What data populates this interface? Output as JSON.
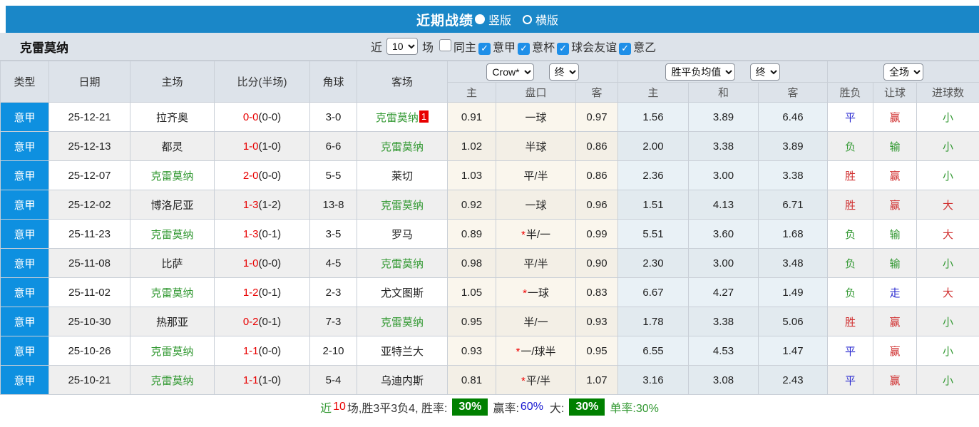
{
  "banner": {
    "title": "近期战绩",
    "radio_vertical": "竖版",
    "radio_horizontal": "横版"
  },
  "filter": {
    "team": "克雷莫纳",
    "near_label": "近",
    "matches_value": "10",
    "matches_label": "场",
    "checkboxes": [
      {
        "label": "同主",
        "checked": false
      },
      {
        "label": "意甲",
        "checked": true
      },
      {
        "label": "意杯",
        "checked": true
      },
      {
        "label": "球会友谊",
        "checked": true
      },
      {
        "label": "意乙",
        "checked": true
      }
    ]
  },
  "colors": {
    "banner_blue": "#1a87c8",
    "league_cell_blue": "#0e90e0",
    "team_green": "#339933",
    "score_red": "#e80000",
    "badge_green": "#008000"
  },
  "table": {
    "headers": {
      "type": "类型",
      "date": "日期",
      "home": "主场",
      "score": "比分(半场)",
      "corner": "角球",
      "away": "客场",
      "odds_home": "主",
      "handicap": "盘口",
      "odds_away": "客",
      "avg_home": "主",
      "avg_draw": "和",
      "avg_away": "客",
      "result": "胜负",
      "let_goal": "让球",
      "goals": "进球数"
    },
    "controls": {
      "company": "Crow*",
      "company_period": "终",
      "avg": "胜平负均值",
      "avg_period": "终",
      "scope": "全场"
    },
    "rows": [
      {
        "league": "意甲",
        "date": "25-12-21",
        "home": {
          "text": "拉齐奥",
          "color": "dark"
        },
        "score": {
          "ft": "0-0",
          "ht": "(0-0)"
        },
        "corner": "3-0",
        "away": {
          "text": "克雷莫纳",
          "color": "green",
          "badge": "1"
        },
        "odds": {
          "home": "0.91",
          "handicap": "一球",
          "starred": false,
          "away": "0.97"
        },
        "avg": {
          "home": "1.56",
          "draw": "3.89",
          "away": "6.46"
        },
        "result": {
          "text": "平",
          "color": "blue"
        },
        "let_goal": {
          "text": "赢",
          "color": "red"
        },
        "goals": {
          "text": "小",
          "color": "green"
        }
      },
      {
        "league": "意甲",
        "date": "25-12-13",
        "home": {
          "text": "都灵",
          "color": "dark"
        },
        "score": {
          "ft": "1-0",
          "ht": "(1-0)"
        },
        "corner": "6-6",
        "away": {
          "text": "克雷莫纳",
          "color": "green"
        },
        "odds": {
          "home": "1.02",
          "handicap": "半球",
          "starred": false,
          "away": "0.86"
        },
        "avg": {
          "home": "2.00",
          "draw": "3.38",
          "away": "3.89"
        },
        "result": {
          "text": "负",
          "color": "green"
        },
        "let_goal": {
          "text": "输",
          "color": "green"
        },
        "goals": {
          "text": "小",
          "color": "green"
        }
      },
      {
        "league": "意甲",
        "date": "25-12-07",
        "home": {
          "text": "克雷莫纳",
          "color": "green"
        },
        "score": {
          "ft": "2-0",
          "ht": "(0-0)"
        },
        "corner": "5-5",
        "away": {
          "text": "莱切",
          "color": "dark"
        },
        "odds": {
          "home": "1.03",
          "handicap": "平/半",
          "starred": false,
          "away": "0.86"
        },
        "avg": {
          "home": "2.36",
          "draw": "3.00",
          "away": "3.38"
        },
        "result": {
          "text": "胜",
          "color": "red"
        },
        "let_goal": {
          "text": "赢",
          "color": "red"
        },
        "goals": {
          "text": "小",
          "color": "green"
        }
      },
      {
        "league": "意甲",
        "date": "25-12-02",
        "home": {
          "text": "博洛尼亚",
          "color": "dark"
        },
        "score": {
          "ft": "1-3",
          "ht": "(1-2)"
        },
        "corner": "13-8",
        "away": {
          "text": "克雷莫纳",
          "color": "green"
        },
        "odds": {
          "home": "0.92",
          "handicap": "一球",
          "starred": false,
          "away": "0.96"
        },
        "avg": {
          "home": "1.51",
          "draw": "4.13",
          "away": "6.71"
        },
        "result": {
          "text": "胜",
          "color": "red"
        },
        "let_goal": {
          "text": "赢",
          "color": "red"
        },
        "goals": {
          "text": "大",
          "color": "red"
        }
      },
      {
        "league": "意甲",
        "date": "25-11-23",
        "home": {
          "text": "克雷莫纳",
          "color": "green"
        },
        "score": {
          "ft": "1-3",
          "ht": "(0-1)"
        },
        "corner": "3-5",
        "away": {
          "text": "罗马",
          "color": "dark"
        },
        "odds": {
          "home": "0.89",
          "handicap": "半/一",
          "starred": true,
          "away": "0.99"
        },
        "avg": {
          "home": "5.51",
          "draw": "3.60",
          "away": "1.68"
        },
        "result": {
          "text": "负",
          "color": "green"
        },
        "let_goal": {
          "text": "输",
          "color": "green"
        },
        "goals": {
          "text": "大",
          "color": "red"
        }
      },
      {
        "league": "意甲",
        "date": "25-11-08",
        "home": {
          "text": "比萨",
          "color": "dark"
        },
        "score": {
          "ft": "1-0",
          "ht": "(0-0)"
        },
        "corner": "4-5",
        "away": {
          "text": "克雷莫纳",
          "color": "green"
        },
        "odds": {
          "home": "0.98",
          "handicap": "平/半",
          "starred": false,
          "away": "0.90"
        },
        "avg": {
          "home": "2.30",
          "draw": "3.00",
          "away": "3.48"
        },
        "result": {
          "text": "负",
          "color": "green"
        },
        "let_goal": {
          "text": "输",
          "color": "green"
        },
        "goals": {
          "text": "小",
          "color": "green"
        }
      },
      {
        "league": "意甲",
        "date": "25-11-02",
        "home": {
          "text": "克雷莫纳",
          "color": "green"
        },
        "score": {
          "ft": "1-2",
          "ht": "(0-1)"
        },
        "corner": "2-3",
        "away": {
          "text": "尤文图斯",
          "color": "dark"
        },
        "odds": {
          "home": "1.05",
          "handicap": "一球",
          "starred": true,
          "away": "0.83"
        },
        "avg": {
          "home": "6.67",
          "draw": "4.27",
          "away": "1.49"
        },
        "result": {
          "text": "负",
          "color": "green"
        },
        "let_goal": {
          "text": "走",
          "color": "blue"
        },
        "goals": {
          "text": "大",
          "color": "red"
        }
      },
      {
        "league": "意甲",
        "date": "25-10-30",
        "home": {
          "text": "热那亚",
          "color": "dark"
        },
        "score": {
          "ft": "0-2",
          "ht": "(0-1)"
        },
        "corner": "7-3",
        "away": {
          "text": "克雷莫纳",
          "color": "green"
        },
        "odds": {
          "home": "0.95",
          "handicap": "半/一",
          "starred": false,
          "away": "0.93"
        },
        "avg": {
          "home": "1.78",
          "draw": "3.38",
          "away": "5.06"
        },
        "result": {
          "text": "胜",
          "color": "red"
        },
        "let_goal": {
          "text": "赢",
          "color": "red"
        },
        "goals": {
          "text": "小",
          "color": "green"
        }
      },
      {
        "league": "意甲",
        "date": "25-10-26",
        "home": {
          "text": "克雷莫纳",
          "color": "green"
        },
        "score": {
          "ft": "1-1",
          "ht": "(0-0)"
        },
        "corner": "2-10",
        "away": {
          "text": "亚特兰大",
          "color": "dark"
        },
        "odds": {
          "home": "0.93",
          "handicap": "一/球半",
          "starred": true,
          "away": "0.95"
        },
        "avg": {
          "home": "6.55",
          "draw": "4.53",
          "away": "1.47"
        },
        "result": {
          "text": "平",
          "color": "blue"
        },
        "let_goal": {
          "text": "赢",
          "color": "red"
        },
        "goals": {
          "text": "小",
          "color": "green"
        }
      },
      {
        "league": "意甲",
        "date": "25-10-21",
        "home": {
          "text": "克雷莫纳",
          "color": "green"
        },
        "score": {
          "ft": "1-1",
          "ht": "(1-0)"
        },
        "corner": "5-4",
        "away": {
          "text": "乌迪内斯",
          "color": "dark"
        },
        "odds": {
          "home": "0.81",
          "handicap": "平/半",
          "starred": true,
          "away": "1.07"
        },
        "avg": {
          "home": "3.16",
          "draw": "3.08",
          "away": "2.43"
        },
        "result": {
          "text": "平",
          "color": "blue"
        },
        "let_goal": {
          "text": "赢",
          "color": "red"
        },
        "goals": {
          "text": "小",
          "color": "green"
        }
      }
    ]
  },
  "footer": {
    "near_label": "近",
    "near_count": "10",
    "summary": "场,胜3平3负4, 胜率:",
    "win_rate": "30%",
    "profit_label": "赢率:",
    "profit_value": "60%",
    "big_label": "大:",
    "big_value": "30%",
    "single_text": "单率:30%"
  }
}
